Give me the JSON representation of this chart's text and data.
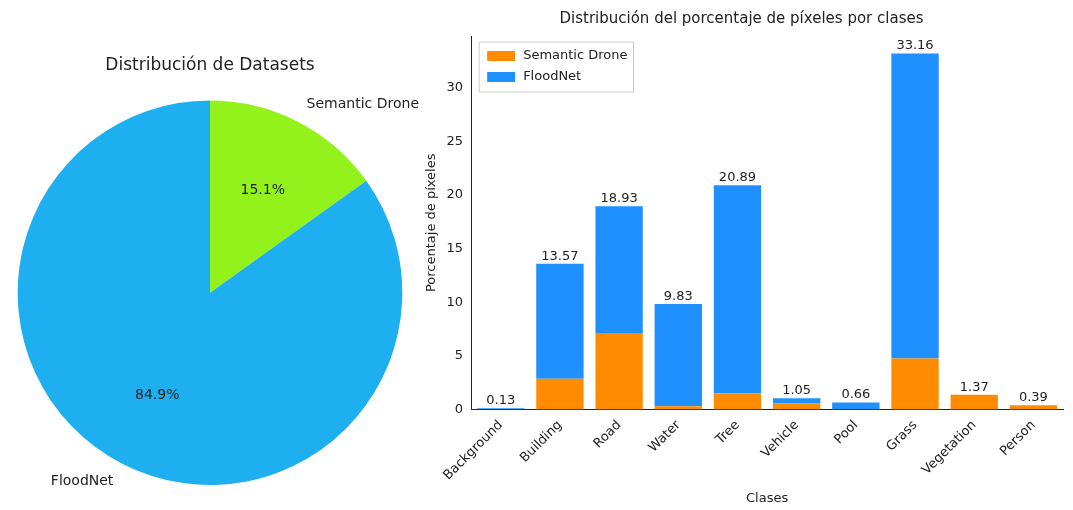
{
  "chart_data": [
    {
      "type": "pie",
      "title": "Distribución de Datasets",
      "categories": [
        "Semantic Drone",
        "FloodNet"
      ],
      "values": [
        15.1,
        84.9
      ],
      "colors": [
        "#94f21c",
        "#1eaff0"
      ],
      "value_labels": [
        "15.1%",
        "84.9%"
      ]
    },
    {
      "type": "bar",
      "title": "Distribución del porcentaje de píxeles por clases",
      "xlabel": "Clases",
      "ylabel": "Porcentaje de píxeles",
      "stacked": true,
      "legend": "top left",
      "categories": [
        "Background",
        "Building",
        "Road",
        "Water",
        "Tree",
        "Vehicle",
        "Pool",
        "Grass",
        "Vegetation",
        "Person"
      ],
      "series": [
        {
          "name": "Semantic Drone",
          "color": "#ff8c00",
          "values": [
            0,
            2.87,
            7.07,
            0.3,
            1.52,
            0.58,
            0,
            4.76,
            1.37,
            0.39
          ]
        },
        {
          "name": "FloodNet",
          "color": "#1e90ff",
          "values": [
            0.13,
            10.7,
            11.86,
            9.53,
            19.37,
            0.47,
            0.66,
            28.4,
            0,
            0
          ]
        }
      ],
      "totals": [
        "0.13",
        "13.57",
        "18.93",
        "9.83",
        "20.89",
        "1.05",
        "0.66",
        "33.16",
        "1.37",
        "0.39"
      ],
      "ylim": [
        0,
        34.8
      ],
      "yticks": [
        0,
        5,
        10,
        15,
        20,
        25,
        30
      ]
    }
  ]
}
